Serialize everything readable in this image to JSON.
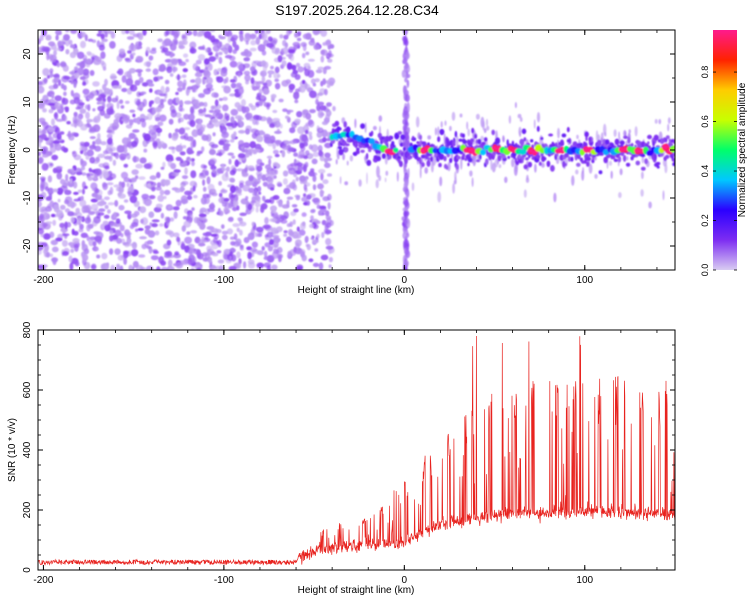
{
  "figure_title": "S197.2025.264.12.28.C34",
  "chart_data": [
    {
      "type": "heatmap",
      "title": "S197.2025.264.12.28.C34",
      "xlabel": "Height of straight line (km)",
      "ylabel": "Frequency (Hz)",
      "xlim": [
        -203,
        150
      ],
      "ylim": [
        -25,
        25
      ],
      "xticks": [
        -200,
        -100,
        0,
        100
      ],
      "yticks": [
        -20,
        -10,
        0,
        10,
        20
      ],
      "colorbar": {
        "label": "Normalized spectral amplitude",
        "range": [
          0.0,
          0.97
        ],
        "ticks": [
          0.0,
          0.2,
          0.4,
          0.6,
          0.8
        ],
        "tick_labels": [
          "0.0",
          "0.2",
          "0.4",
          "0.6",
          "0.8"
        ],
        "colormap": [
          "#d9ccf2",
          "#7d2df2",
          "#2b00ff",
          "#00c8ff",
          "#00ff6a",
          "#c8ff00",
          "#ffcc00",
          "#ff2200",
          "#ff1a8c"
        ]
      },
      "features": {
        "noise_region_x": [
          -203,
          -40
        ],
        "signal_onset_x": -40,
        "vertical_stripe_x": 1,
        "carrier_frequency_hz": 0,
        "early_signal_frequency_hz": 3,
        "peak_positions_x": [
          -8,
          12,
          37,
          52,
          60,
          72,
          87,
          102,
          122,
          131,
          146
        ]
      }
    },
    {
      "type": "line",
      "xlabel": "Height of straight line (km)",
      "ylabel": "SNR (10 * v/v)",
      "xlim": [
        -203,
        150
      ],
      "ylim": [
        0,
        800
      ],
      "xticks": [
        -200,
        -100,
        0,
        100
      ],
      "yticks": [
        0,
        200,
        400,
        600,
        800
      ],
      "series": [
        {
          "name": "SNR",
          "color": "#e8231f",
          "envelope": [
            [
              -203,
              20
            ],
            [
              -60,
              22
            ],
            [
              -57,
              80
            ],
            [
              -50,
              130
            ],
            [
              -40,
              150
            ],
            [
              -30,
              170
            ],
            [
              -15,
              210
            ],
            [
              0,
              300
            ],
            [
              10,
              370
            ],
            [
              20,
              450
            ],
            [
              30,
              520
            ],
            [
              40,
              560
            ],
            [
              55,
              620
            ],
            [
              70,
              640
            ],
            [
              90,
              650
            ],
            [
              110,
              650
            ],
            [
              130,
              640
            ],
            [
              150,
              630
            ]
          ],
          "baseline": [
            [
              -203,
              18
            ],
            [
              -60,
              18
            ],
            [
              -55,
              40
            ],
            [
              -40,
              60
            ],
            [
              -20,
              70
            ],
            [
              0,
              80
            ],
            [
              10,
              110
            ],
            [
              20,
              140
            ],
            [
              30,
              150
            ],
            [
              40,
              160
            ],
            [
              60,
              175
            ],
            [
              80,
              180
            ],
            [
              100,
              185
            ],
            [
              120,
              180
            ],
            [
              150,
              170
            ]
          ],
          "spike_max": 795
        }
      ]
    }
  ]
}
